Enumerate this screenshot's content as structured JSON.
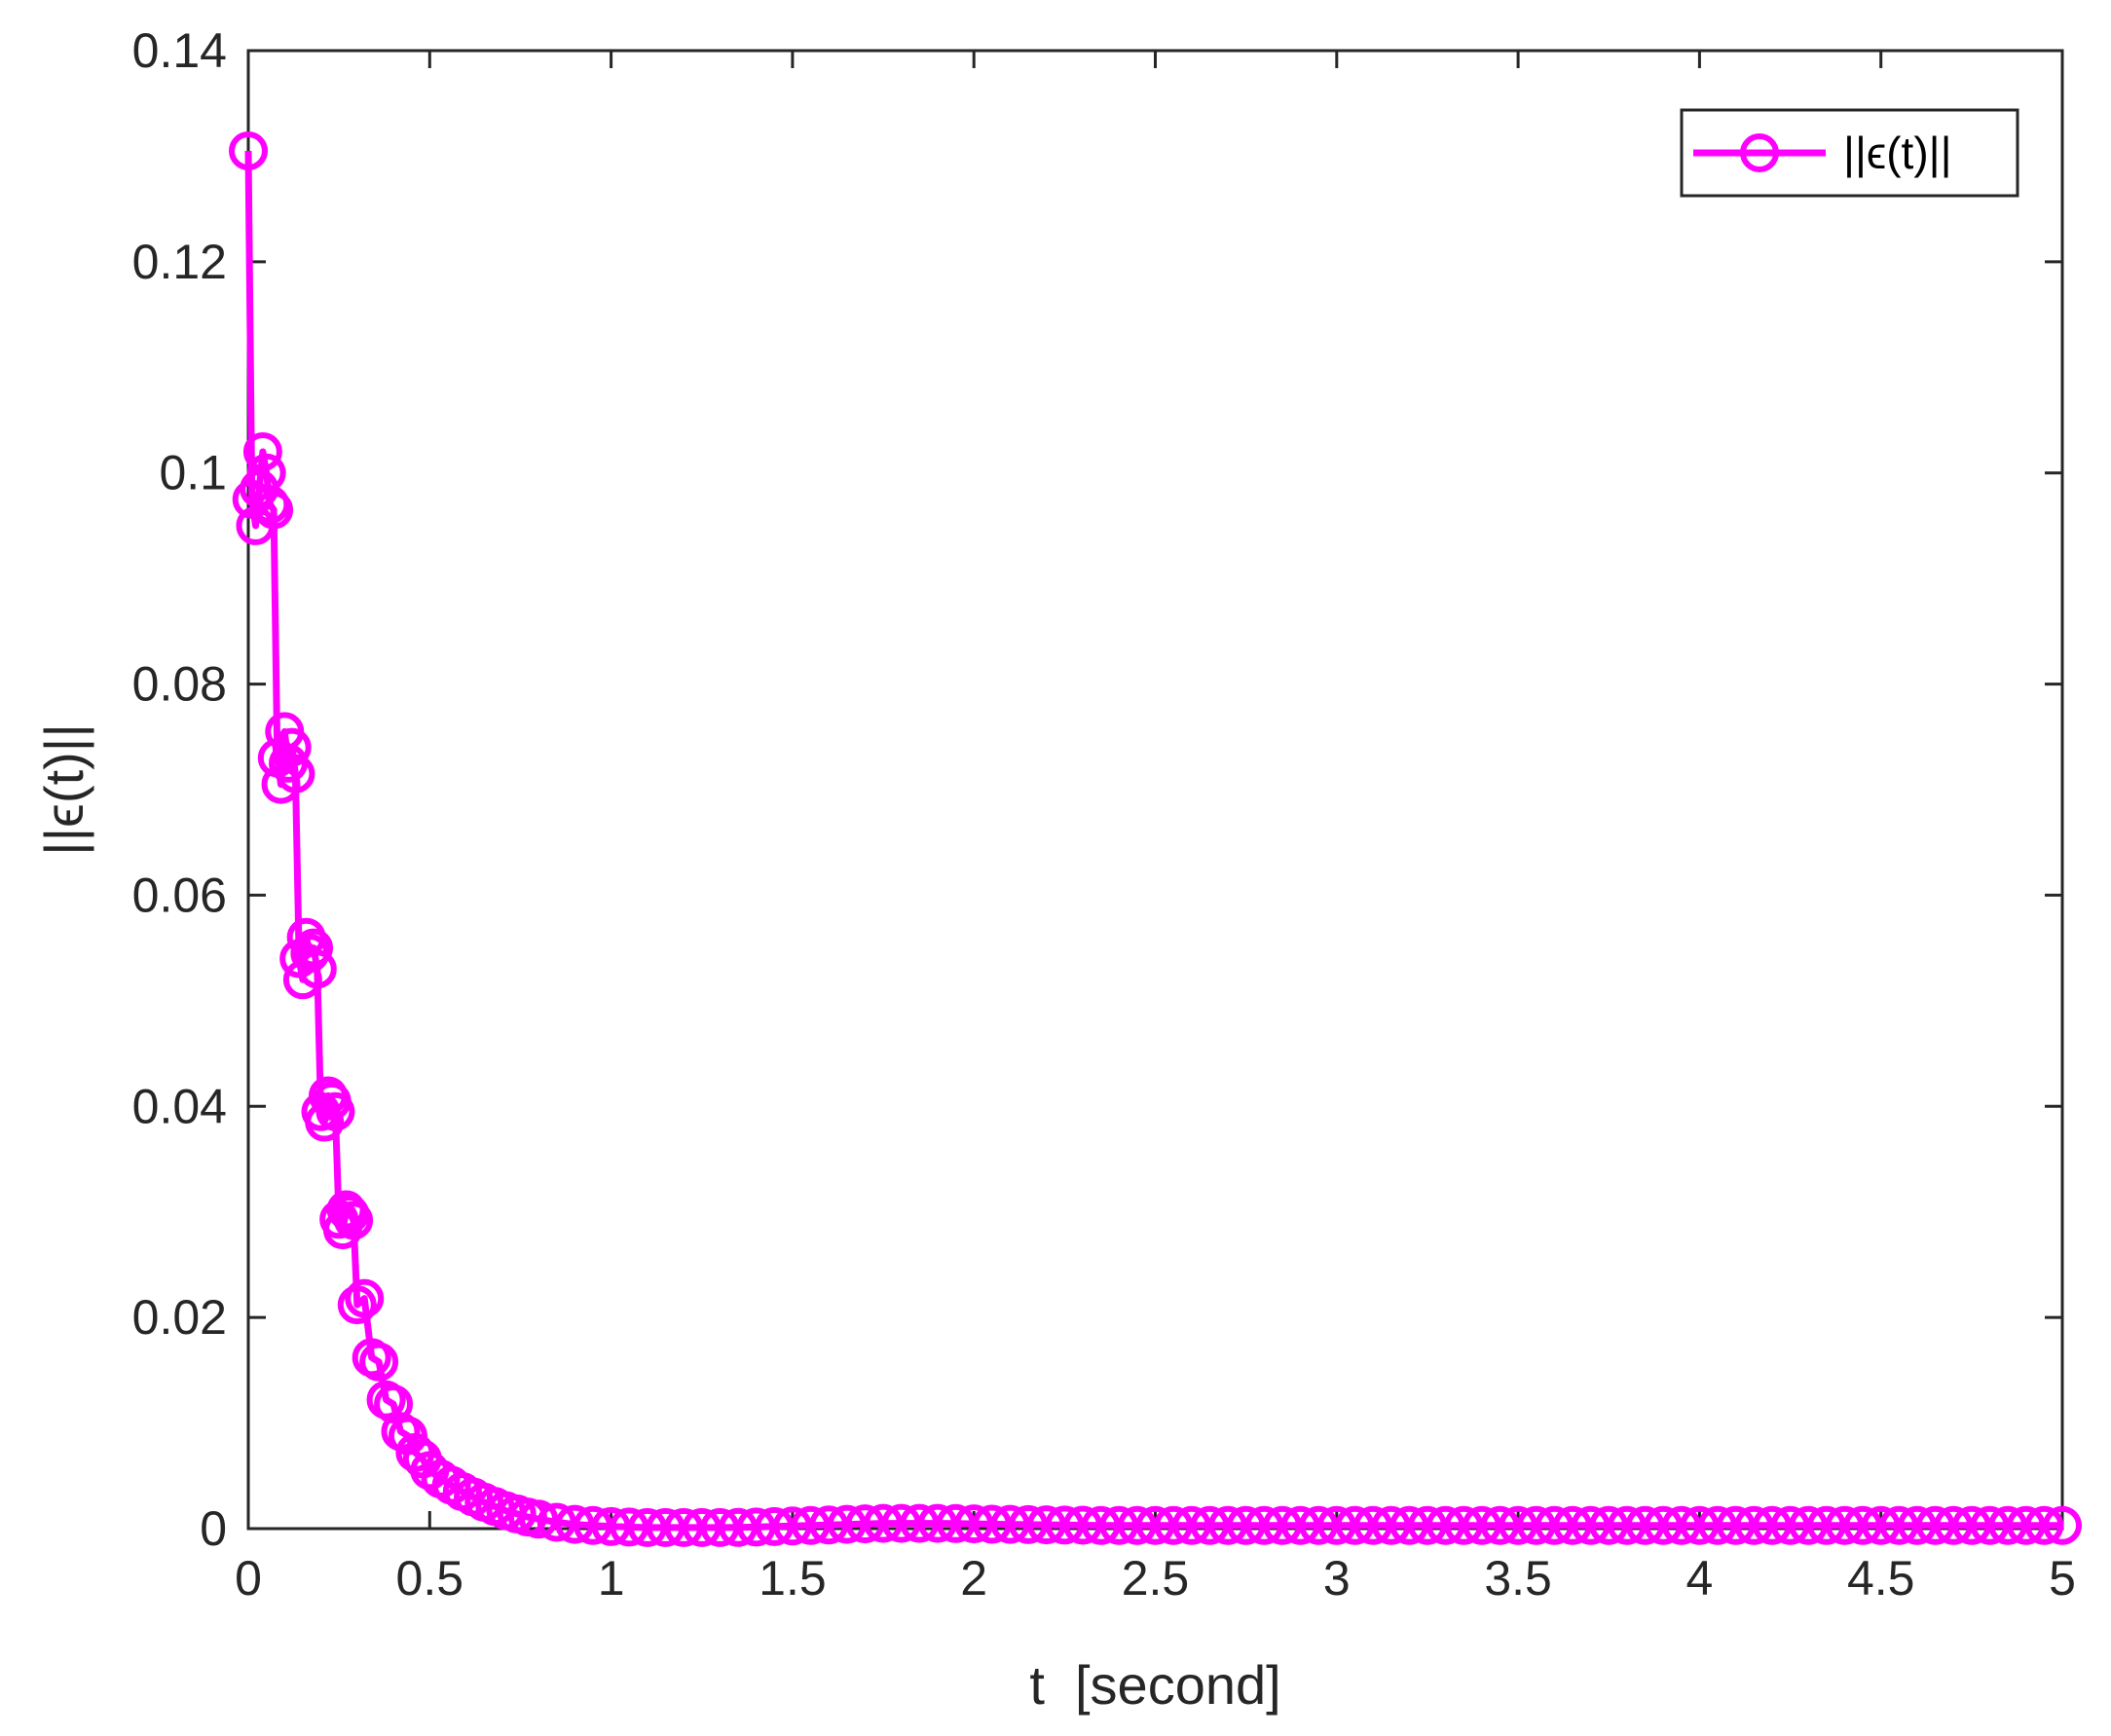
{
  "chart_data": {
    "type": "line",
    "title": "",
    "xlabel": "t  [second]",
    "ylabel": "||ϵ(t)||",
    "xlim": [
      0,
      5
    ],
    "ylim": [
      0,
      0.14
    ],
    "xticks": [
      0,
      0.5,
      1,
      1.5,
      2,
      2.5,
      3,
      3.5,
      4,
      4.5,
      5
    ],
    "xtick_labels": [
      "0",
      "0.5",
      "1",
      "1.5",
      "2",
      "2.5",
      "3",
      "3.5",
      "4",
      "4.5",
      "5"
    ],
    "yticks": [
      0,
      0.02,
      0.04,
      0.06,
      0.08,
      0.1,
      0.12,
      0.14
    ],
    "ytick_labels": [
      "0",
      "0.02",
      "0.04",
      "0.06",
      "0.08",
      "0.1",
      "0.12",
      "0.14"
    ],
    "grid": false,
    "legend_position": "top-right",
    "marker": "circle",
    "series": [
      {
        "name": "||ϵ(t)||",
        "color": "#ff00ff",
        "x": [
          0,
          0.01,
          0.02,
          0.03,
          0.04,
          0.05,
          0.06,
          0.07,
          0.08,
          0.09,
          0.1,
          0.11,
          0.12,
          0.13,
          0.14,
          0.15,
          0.16,
          0.17,
          0.18,
          0.19,
          0.2,
          0.21,
          0.22,
          0.23,
          0.24,
          0.25,
          0.26,
          0.27,
          0.28,
          0.29,
          0.3,
          0.32,
          0.34,
          0.36,
          0.38,
          0.4,
          0.42,
          0.44,
          0.46,
          0.48,
          0.5,
          0.53,
          0.56,
          0.59,
          0.62,
          0.65,
          0.68,
          0.71,
          0.74,
          0.77,
          0.8,
          0.85,
          0.9,
          0.95,
          1.0,
          1.05,
          1.1,
          1.15,
          1.2,
          1.25,
          1.3,
          1.35,
          1.4,
          1.45,
          1.5,
          1.55,
          1.6,
          1.65,
          1.7,
          1.75,
          1.8,
          1.85,
          1.9,
          1.95,
          2.0,
          2.05,
          2.1,
          2.15,
          2.2,
          2.25,
          2.3,
          2.35,
          2.4,
          2.45,
          2.5,
          2.55,
          2.6,
          2.65,
          2.7,
          2.75,
          2.8,
          2.85,
          2.9,
          2.95,
          3.0,
          3.05,
          3.1,
          3.15,
          3.2,
          3.25,
          3.3,
          3.35,
          3.4,
          3.45,
          3.5,
          3.55,
          3.6,
          3.65,
          3.7,
          3.75,
          3.8,
          3.85,
          3.9,
          3.95,
          4.0,
          4.05,
          4.1,
          4.15,
          4.2,
          4.25,
          4.3,
          4.35,
          4.4,
          4.45,
          4.5,
          4.55,
          4.6,
          4.65,
          4.7,
          4.75,
          4.8,
          4.85,
          4.9,
          4.95,
          5.0
        ],
        "y": [
          0.1305,
          0.0975,
          0.095,
          0.0985,
          0.102,
          0.1,
          0.097,
          0.0965,
          0.073,
          0.0705,
          0.0755,
          0.0725,
          0.074,
          0.0715,
          0.054,
          0.052,
          0.056,
          0.0545,
          0.055,
          0.053,
          0.0395,
          0.0385,
          0.041,
          0.0405,
          0.0395,
          0.0293,
          0.0283,
          0.0302,
          0.0298,
          0.0292,
          0.0212,
          0.0218,
          0.0162,
          0.0158,
          0.0122,
          0.0118,
          0.0092,
          0.0088,
          0.0072,
          0.0066,
          0.0055,
          0.0047,
          0.0041,
          0.0035,
          0.003,
          0.0025,
          0.0021,
          0.0017,
          0.0014,
          0.0011,
          0.0009,
          0.0006,
          0.0004,
          0.0003,
          0.0002,
          0.00015,
          0.0001,
          0.0001,
          0.0001,
          0.0001,
          0.0001,
          0.00012,
          0.00015,
          0.0002,
          0.00025,
          0.0003,
          0.00035,
          0.0004,
          0.00045,
          0.0005,
          0.0005,
          0.0005,
          0.0005,
          0.00048,
          0.00045,
          0.00042,
          0.0004,
          0.00038,
          0.00036,
          0.00034,
          0.00032,
          0.0003,
          0.0003,
          0.0003,
          0.0003,
          0.0003,
          0.0003,
          0.0003,
          0.0003,
          0.0003,
          0.0003,
          0.0003,
          0.0003,
          0.0003,
          0.0003,
          0.0003,
          0.0003,
          0.0003,
          0.0003,
          0.0003,
          0.0003,
          0.0003,
          0.0003,
          0.0003,
          0.0003,
          0.0003,
          0.0003,
          0.0003,
          0.0003,
          0.0003,
          0.0003,
          0.0003,
          0.0003,
          0.0003,
          0.0003,
          0.0003,
          0.0003,
          0.0003,
          0.0003,
          0.0003,
          0.0003,
          0.0003,
          0.0003,
          0.0003,
          0.0003,
          0.0003,
          0.0003,
          0.0003,
          0.0003,
          0.0003,
          0.0003,
          0.0003,
          0.0003,
          0.0003,
          0.0003
        ]
      }
    ]
  }
}
